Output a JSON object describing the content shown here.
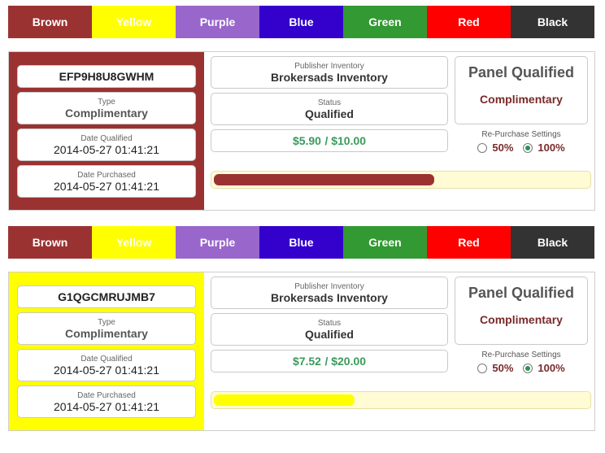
{
  "tabs": [
    {
      "label": "Brown",
      "color": "#9b3232"
    },
    {
      "label": "Yellow",
      "color": "#ffff00"
    },
    {
      "label": "Purple",
      "color": "#9966cc"
    },
    {
      "label": "Blue",
      "color": "#3300cc"
    },
    {
      "label": "Green",
      "color": "#339933"
    },
    {
      "label": "Red",
      "color": "#ff0000"
    },
    {
      "label": "Black",
      "color": "#333333"
    }
  ],
  "cards": [
    {
      "accent": "#9b3232",
      "code": "EFP9H8U8GWHM",
      "type_label": "Type",
      "type_value": "Complimentary",
      "date_qualified_label": "Date Qualified",
      "date_qualified": "2014-05-27 01:41:21",
      "date_purchased_label": "Date Purchased",
      "date_purchased": "2014-05-27 01:41:21",
      "publisher_label": "Publisher Inventory",
      "publisher": "Brokersads Inventory",
      "status_label": "Status",
      "status": "Qualified",
      "spent": "$5.90",
      "total": "$10.00",
      "panel_title": "Panel Qualified",
      "panel_sub": "Complimentary",
      "repurchase_label": "Re-Purchase Settings",
      "opt1": "50%",
      "opt2": "100%",
      "selected": "100%",
      "progress": 0.59,
      "bar_color": "#9b3232"
    },
    {
      "accent": "#ffff00",
      "code": "G1QGCMRUJMB7",
      "type_label": "Type",
      "type_value": "Complimentary",
      "date_qualified_label": "Date Qualified",
      "date_qualified": "2014-05-27 01:41:21",
      "date_purchased_label": "Date Purchased",
      "date_purchased": "2014-05-27 01:41:21",
      "publisher_label": "Publisher Inventory",
      "publisher": "Brokersads Inventory",
      "status_label": "Status",
      "status": "Qualified",
      "spent": "$7.52",
      "total": "$20.00",
      "panel_title": "Panel Qualified",
      "panel_sub": "Complimentary",
      "repurchase_label": "Re-Purchase Settings",
      "opt1": "50%",
      "opt2": "100%",
      "selected": "100%",
      "progress": 0.376,
      "bar_color": "#ffff00"
    }
  ]
}
